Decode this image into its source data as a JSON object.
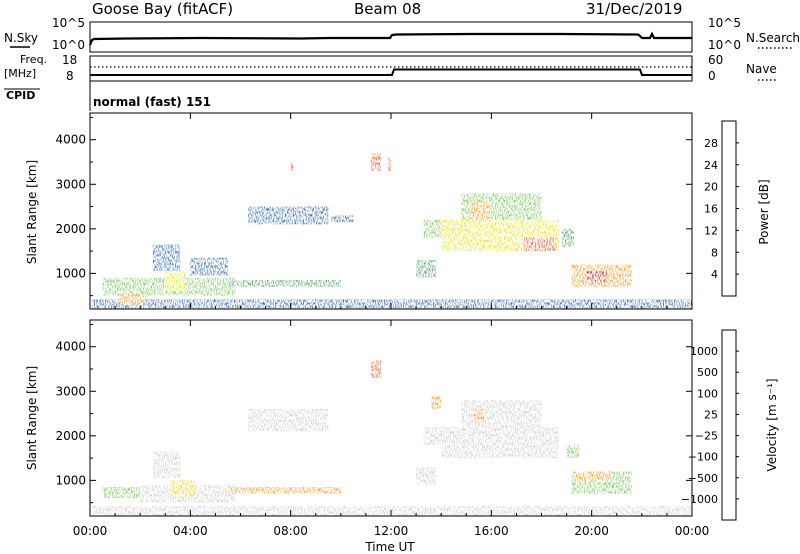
{
  "header": {
    "site": "Goose Bay (fitACF)",
    "beam": "Beam 08",
    "date": "31/Dec/2019"
  },
  "status_panel": {
    "nsky_label": "N.Sky",
    "nsky_ticks": [
      "10^5",
      "10^0"
    ],
    "nsearch_label": "N.Search",
    "nsearch_ticks": [
      "10^5",
      "10^0"
    ],
    "freq_label": "Freq.",
    "freq_unit": "[MHz]",
    "freq_ticks": [
      "18",
      "8"
    ],
    "nave_label": "Nave",
    "nave_ticks": [
      "60",
      "0"
    ],
    "cpid_label": "CPID",
    "cpid_value": "normal (fast) 151"
  },
  "colors": {
    "power": [
      "#0000ff",
      "#1e5aa8",
      "#3f8f5a",
      "#6cc24a",
      "#e6e600",
      "#ff8c00",
      "#ff4000",
      "#e00000"
    ],
    "velocity": [
      "#e00000",
      "#ff4000",
      "#ff8c00",
      "#ffc800",
      "#c8c8c8",
      "#3f8f5a",
      "#6cc24a",
      "#1e5aa8",
      "#0000ff"
    ]
  },
  "chart_data": [
    {
      "type": "heatmap",
      "quantity": "Power",
      "xlabel": "Time UT",
      "ylabel": "Slant Range [km]",
      "xticks": [
        "00:00",
        "04:00",
        "08:00",
        "12:00",
        "16:00",
        "20:00",
        "00:00"
      ],
      "xlim_hours": [
        0,
        24
      ],
      "ylim": [
        200,
        4600
      ],
      "yticks": [
        1000,
        2000,
        3000,
        4000
      ],
      "colorbar_label": "Power [dB]",
      "colorbar_ticks": [
        4,
        8,
        12,
        16,
        20,
        24,
        28
      ],
      "regions": [
        {
          "t0": 0.1,
          "t1": 24.0,
          "r0": 200,
          "r1": 420,
          "level": 1
        },
        {
          "t0": 0.5,
          "t1": 5.8,
          "r0": 500,
          "r1": 900,
          "level": 3
        },
        {
          "t0": 1.2,
          "t1": 2.2,
          "r0": 300,
          "r1": 550,
          "level": 5
        },
        {
          "t0": 2.5,
          "t1": 3.6,
          "r0": 1050,
          "r1": 1650,
          "level": 1
        },
        {
          "t0": 3.0,
          "t1": 3.8,
          "r0": 600,
          "r1": 1050,
          "level": 4
        },
        {
          "t0": 4.0,
          "t1": 5.5,
          "r0": 950,
          "r1": 1350,
          "level": 1
        },
        {
          "t0": 5.5,
          "t1": 10.0,
          "r0": 700,
          "r1": 850,
          "level": 2
        },
        {
          "t0": 6.3,
          "t1": 9.5,
          "r0": 2100,
          "r1": 2500,
          "level": 1
        },
        {
          "t0": 9.6,
          "t1": 10.5,
          "r0": 2150,
          "r1": 2300,
          "level": 1
        },
        {
          "t0": 8.0,
          "t1": 8.1,
          "r0": 3300,
          "r1": 3500,
          "level": 6
        },
        {
          "t0": 11.2,
          "t1": 11.6,
          "r0": 3300,
          "r1": 3700,
          "level": 6
        },
        {
          "t0": 11.9,
          "t1": 12.0,
          "r0": 3300,
          "r1": 3600,
          "level": 6
        },
        {
          "t0": 13.0,
          "t1": 13.8,
          "r0": 900,
          "r1": 1300,
          "level": 2
        },
        {
          "t0": 13.3,
          "t1": 14.4,
          "r0": 1800,
          "r1": 2200,
          "level": 3
        },
        {
          "t0": 14.0,
          "t1": 18.7,
          "r0": 1500,
          "r1": 2200,
          "level": 4
        },
        {
          "t0": 14.8,
          "t1": 18.0,
          "r0": 2200,
          "r1": 2800,
          "level": 3
        },
        {
          "t0": 15.2,
          "t1": 15.9,
          "r0": 2200,
          "r1": 2600,
          "level": 5
        },
        {
          "t0": 17.3,
          "t1": 18.6,
          "r0": 1500,
          "r1": 1800,
          "level": 6
        },
        {
          "t0": 18.8,
          "t1": 19.3,
          "r0": 1600,
          "r1": 2000,
          "level": 2
        },
        {
          "t0": 19.2,
          "t1": 21.6,
          "r0": 700,
          "r1": 1200,
          "level": 5
        },
        {
          "t0": 19.8,
          "t1": 20.6,
          "r0": 800,
          "r1": 1050,
          "level": 7
        }
      ]
    },
    {
      "type": "heatmap",
      "quantity": "Velocity",
      "xlabel": "Time UT",
      "ylabel": "Slant Range [km]",
      "xticks": [
        "00:00",
        "04:00",
        "08:00",
        "12:00",
        "16:00",
        "20:00",
        "00:00"
      ],
      "xlim_hours": [
        0,
        24
      ],
      "ylim": [
        200,
        4600
      ],
      "yticks": [
        1000,
        2000,
        3000,
        4000
      ],
      "colorbar_label": "Velocity [m s⁻¹]",
      "colorbar_ticks": [
        "1000",
        "500",
        "100",
        "25",
        "−25",
        "−100",
        "−500",
        "−1000"
      ],
      "regions": [
        {
          "t0": 0.1,
          "t1": 24.0,
          "r0": 200,
          "r1": 420,
          "level": 4
        },
        {
          "t0": 0.5,
          "t1": 2.0,
          "r0": 600,
          "r1": 850,
          "level": 6
        },
        {
          "t0": 2.0,
          "t1": 5.8,
          "r0": 500,
          "r1": 900,
          "level": 4
        },
        {
          "t0": 2.5,
          "t1": 3.6,
          "r0": 1050,
          "r1": 1650,
          "level": 4
        },
        {
          "t0": 3.2,
          "t1": 4.2,
          "r0": 600,
          "r1": 1000,
          "level": 3
        },
        {
          "t0": 5.5,
          "t1": 10.0,
          "r0": 700,
          "r1": 850,
          "level": 2
        },
        {
          "t0": 6.3,
          "t1": 9.5,
          "r0": 2100,
          "r1": 2600,
          "level": 4
        },
        {
          "t0": 11.2,
          "t1": 11.6,
          "r0": 3300,
          "r1": 3700,
          "level": 1
        },
        {
          "t0": 13.0,
          "t1": 13.8,
          "r0": 900,
          "r1": 1300,
          "level": 4
        },
        {
          "t0": 13.3,
          "t1": 14.4,
          "r0": 1800,
          "r1": 2200,
          "level": 4
        },
        {
          "t0": 14.0,
          "t1": 18.7,
          "r0": 1500,
          "r1": 2200,
          "level": 4
        },
        {
          "t0": 14.8,
          "t1": 18.0,
          "r0": 2200,
          "r1": 2800,
          "level": 4
        },
        {
          "t0": 13.6,
          "t1": 14.0,
          "r0": 2600,
          "r1": 2900,
          "level": 2
        },
        {
          "t0": 15.3,
          "t1": 15.7,
          "r0": 2300,
          "r1": 2600,
          "level": 2
        },
        {
          "t0": 19.0,
          "t1": 19.5,
          "r0": 1500,
          "r1": 1800,
          "level": 6
        },
        {
          "t0": 19.2,
          "t1": 21.6,
          "r0": 700,
          "r1": 1200,
          "level": 6
        },
        {
          "t0": 19.3,
          "t1": 20.8,
          "r0": 1000,
          "r1": 1200,
          "level": 2
        }
      ]
    }
  ]
}
